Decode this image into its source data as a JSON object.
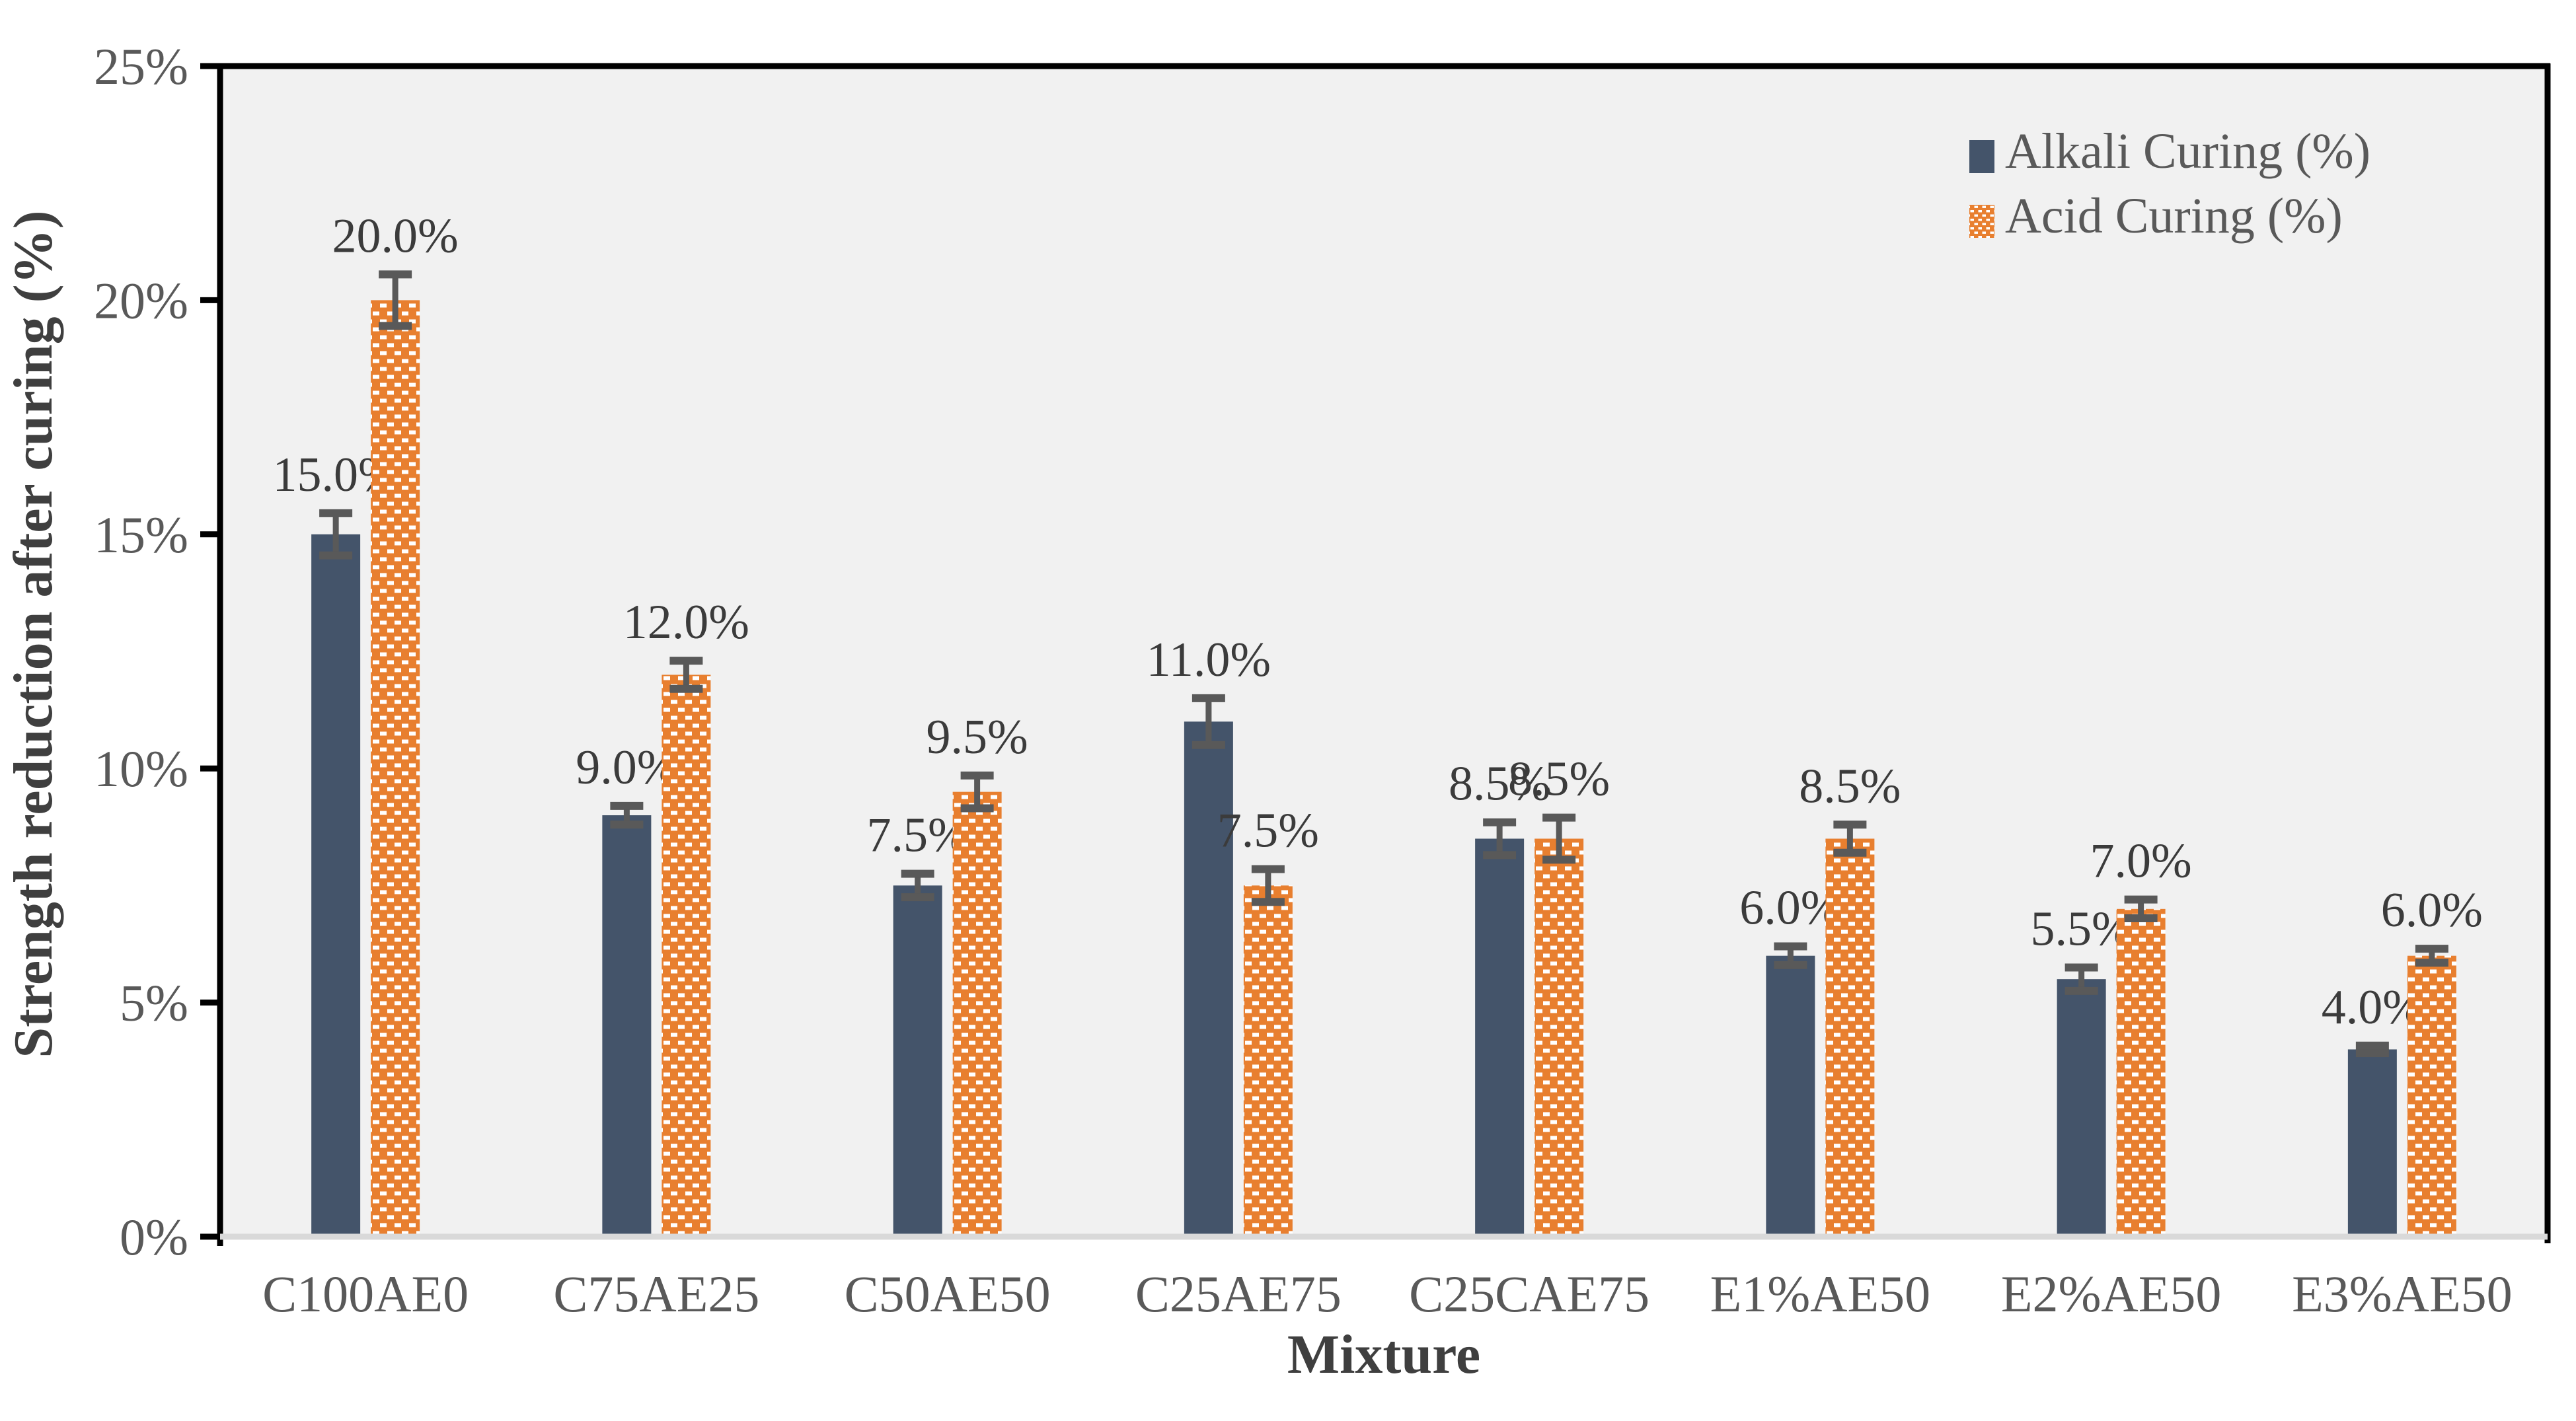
{
  "chart_data": {
    "type": "bar",
    "title": "",
    "xlabel": "Mixture",
    "ylabel": "Strength reduction after curing (%)",
    "categories": [
      "C100AE0",
      "C75AE25",
      "C50AE50",
      "C25AE75",
      "C25CAE75",
      "E1%AE50",
      "E2%AE50",
      "E3%AE50"
    ],
    "series": [
      {
        "name": "Alkali Curing (%)",
        "color": "#44546A",
        "fill_style": "solid",
        "values": [
          15.0,
          9.0,
          7.5,
          11.0,
          8.5,
          6.0,
          5.5,
          4.0
        ],
        "data_labels": [
          "15.0%",
          "9.0%",
          "7.5%",
          "11.0%",
          "8.5%",
          "6.0%",
          "5.5%",
          "4.0%"
        ],
        "errors": [
          0.45,
          0.2,
          0.25,
          0.5,
          0.35,
          0.2,
          0.25,
          0.08
        ]
      },
      {
        "name": "Acid Curing (%)",
        "color": "#E87F2F",
        "fill_style": "white-dash-brick-pattern",
        "values": [
          20.0,
          12.0,
          9.5,
          7.5,
          8.5,
          8.5,
          7.0,
          6.0
        ],
        "data_labels": [
          "20.0%",
          "12.0%",
          "9.5%",
          "7.5%",
          "8.5%",
          "8.5%",
          "7.0%",
          "6.0%"
        ],
        "errors": [
          0.55,
          0.3,
          0.35,
          0.35,
          0.45,
          0.3,
          0.2,
          0.15
        ]
      }
    ],
    "yticks": [
      {
        "value": 0,
        "label": "0%"
      },
      {
        "value": 5,
        "label": "5%"
      },
      {
        "value": 10,
        "label": "10%"
      },
      {
        "value": 15,
        "label": "15%"
      },
      {
        "value": 20,
        "label": "20%"
      },
      {
        "value": 25,
        "label": "25%"
      }
    ],
    "ylim": [
      0,
      25
    ],
    "grid": "off",
    "legend_position": "top-right",
    "colors": {
      "plot_background": "#F1F1F1",
      "page_background": "#FFFFFF",
      "plot_border": "#000000",
      "baseline": "#D9D9D9",
      "error_bar": "#595959",
      "tick_text": "#595959",
      "data_label_text": "#3B3B3B",
      "axis_title_text": "#3F3F3F"
    }
  }
}
